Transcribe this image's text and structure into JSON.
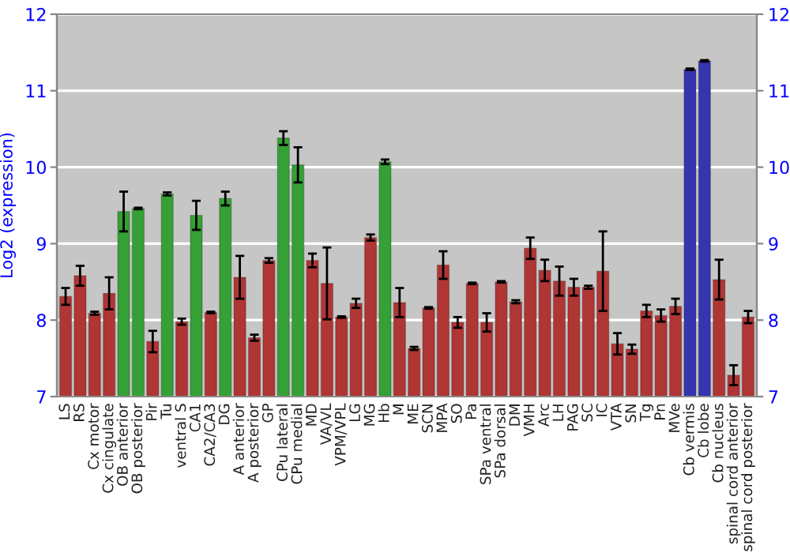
{
  "chart_data": {
    "type": "bar",
    "ylabel": "Log2 (expression)",
    "categories": [
      "LS",
      "RS",
      "Cx motor",
      "Cx cingulate",
      "OB anterior",
      "OB posterior",
      "Pir",
      "Tu",
      "ventral S",
      "CA1",
      "CA2/CA3",
      "DG",
      "A anterior",
      "A posterior",
      "GP",
      "CPu lateral",
      "CPu medial",
      "MD",
      "VA/VL",
      "VPM/VPL",
      "LG",
      "MG",
      "Hb",
      "M",
      "ME",
      "SCN",
      "MPA",
      "SO",
      "Pa",
      "SPa ventral",
      "SPa dorsal",
      "DM",
      "VMH",
      "Arc",
      "LH",
      "PAG",
      "SC",
      "IC",
      "VTA",
      "SN",
      "Tg",
      "Pn",
      "MVe",
      "Cb vermis",
      "Cb lobe",
      "Cb nucleus",
      "spinal cord anterior",
      "spinal cord posterior"
    ],
    "values": [
      8.31,
      8.58,
      8.09,
      8.35,
      9.42,
      9.46,
      7.72,
      9.65,
      7.98,
      9.37,
      8.1,
      9.59,
      8.56,
      7.77,
      8.78,
      10.38,
      10.03,
      8.78,
      8.48,
      8.04,
      8.22,
      9.08,
      10.07,
      8.23,
      7.63,
      8.16,
      8.72,
      7.97,
      8.48,
      7.97,
      8.5,
      8.24,
      8.94,
      8.65,
      8.51,
      8.43,
      8.43,
      8.64,
      7.69,
      7.62,
      8.12,
      8.06,
      8.18,
      11.28,
      11.39,
      8.53,
      7.28,
      8.04
    ],
    "errors": [
      0.11,
      0.13,
      0.02,
      0.21,
      0.26,
      0.01,
      0.14,
      0.02,
      0.04,
      0.19,
      0.01,
      0.09,
      0.28,
      0.04,
      0.03,
      0.09,
      0.23,
      0.09,
      0.47,
      0.01,
      0.06,
      0.04,
      0.03,
      0.19,
      0.02,
      0.01,
      0.18,
      0.07,
      0.01,
      0.12,
      0.01,
      0.02,
      0.14,
      0.14,
      0.19,
      0.11,
      0.02,
      0.52,
      0.14,
      0.06,
      0.08,
      0.08,
      0.1,
      0.01,
      0.01,
      0.26,
      0.13,
      0.08
    ],
    "colors": [
      "#b03535",
      "#b03535",
      "#b03535",
      "#b03535",
      "#35a035",
      "#35a035",
      "#b03535",
      "#35a035",
      "#b03535",
      "#35a035",
      "#b03535",
      "#35a035",
      "#b03535",
      "#b03535",
      "#b03535",
      "#35a035",
      "#35a035",
      "#b03535",
      "#b03535",
      "#b03535",
      "#b03535",
      "#b03535",
      "#35a035",
      "#b03535",
      "#b03535",
      "#b03535",
      "#b03535",
      "#b03535",
      "#b03535",
      "#b03535",
      "#b03535",
      "#b03535",
      "#b03535",
      "#b03535",
      "#b03535",
      "#b03535",
      "#b03535",
      "#b03535",
      "#b03535",
      "#b03535",
      "#b03535",
      "#b03535",
      "#b03535",
      "#3535b0",
      "#3535b0",
      "#b03535",
      "#b03535",
      "#b03535"
    ],
    "ylim": [
      7,
      12
    ],
    "yticks": [
      7,
      8,
      9,
      10,
      11,
      12
    ],
    "y2lim": [
      7,
      12
    ],
    "y2ticks": [
      7,
      8,
      9,
      10,
      11,
      12
    ],
    "grid": "y"
  }
}
